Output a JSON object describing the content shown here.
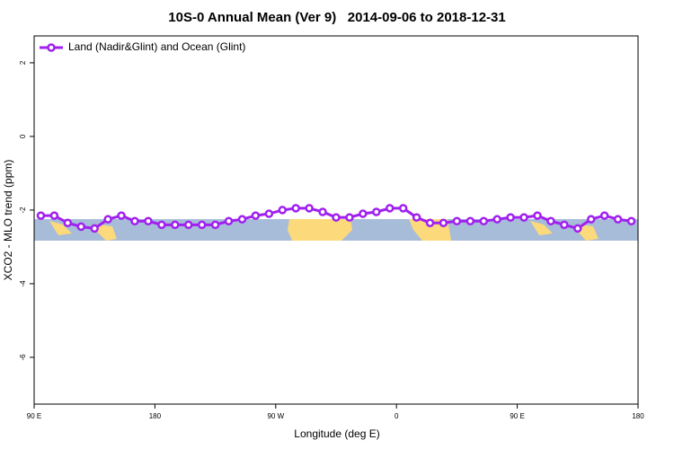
{
  "chart_data": {
    "type": "line",
    "title": "10S-0 Annual Mean (Ver 9)   2014-09-06 to 2018-12-31",
    "x_label": "Longitude (deg E)",
    "y_label": "XCO2 - MLO trend (ppm)",
    "xlim": [
      90,
      540
    ],
    "ylim": [
      -7.27,
      2.73
    ],
    "xticks": [
      {
        "value": 90,
        "label": "90 E"
      },
      180,
      {
        "value": 270,
        "label": "90 W"
      },
      {
        "value": 360,
        "label": "0"
      },
      {
        "value": 450,
        "label": "90 E"
      },
      {
        "value": 540,
        "label": "180"
      }
    ],
    "yticks": [
      2,
      0,
      -2,
      -4,
      -6
    ],
    "legend": "upper left",
    "x": [
      95,
      105,
      115,
      125,
      135,
      145,
      155,
      165,
      175,
      185,
      195,
      205,
      215,
      225,
      235,
      245,
      255,
      265,
      275,
      285,
      295,
      305,
      315,
      325,
      335,
      345,
      355,
      365,
      375,
      385,
      395,
      405,
      415,
      425,
      435,
      445,
      455,
      465,
      475,
      485,
      495,
      505,
      515,
      525,
      535
    ],
    "series": [
      {
        "name": "Land (Nadir&Glint) and Ocean (Glint)",
        "color": "#a020f0",
        "values": [
          -2.15,
          -2.15,
          -2.35,
          -2.45,
          -2.5,
          -2.25,
          -2.15,
          -2.3,
          -2.3,
          -2.4,
          -2.4,
          -2.4,
          -2.4,
          -2.4,
          -2.3,
          -2.25,
          -2.15,
          -2.1,
          -2.0,
          -1.95,
          -1.95,
          -2.05,
          -2.2,
          -2.2,
          -2.1,
          -2.05,
          -1.95,
          -1.95,
          -2.2,
          -2.35,
          -2.35,
          -2.3,
          -2.3,
          -2.3,
          -2.25,
          -2.2,
          -2.2,
          -2.15,
          -2.3,
          -2.4,
          -2.5,
          -2.25,
          -2.15,
          -2.25,
          -2.3
        ]
      }
    ]
  }
}
